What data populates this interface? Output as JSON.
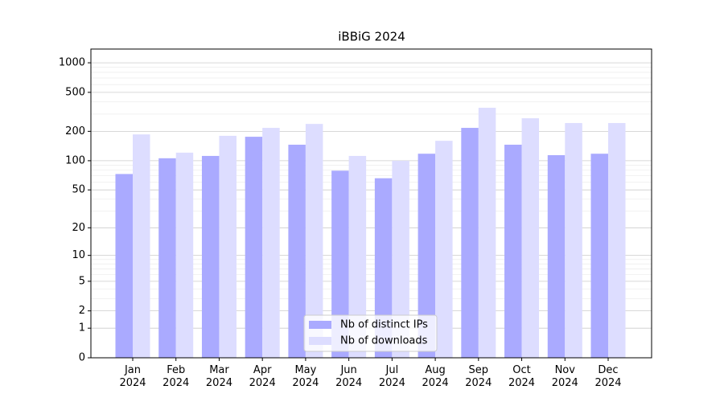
{
  "chart_data": {
    "type": "bar",
    "title": "iBBiG 2024",
    "categories": [
      "Jan\n2024",
      "Feb\n2024",
      "Mar\n2024",
      "Apr\n2024",
      "May\n2024",
      "Jun\n2024",
      "Jul\n2024",
      "Aug\n2024",
      "Sep\n2024",
      "Oct\n2024",
      "Nov\n2024",
      "Dec\n2024"
    ],
    "series": [
      {
        "name": "Nb of distinct IPs",
        "color": "#aaaaff",
        "values": [
          73,
          106,
          112,
          176,
          146,
          79,
          66,
          118,
          217,
          146,
          114,
          118
        ]
      },
      {
        "name": "Nb of downloads",
        "color": "#ddddff",
        "values": [
          186,
          121,
          180,
          217,
          238,
          112,
          100,
          160,
          348,
          272,
          243,
          243
        ]
      }
    ],
    "yscale": "log1p",
    "ylim": [
      0,
      1380
    ],
    "yticks": [
      0,
      1,
      2,
      5,
      10,
      20,
      50,
      100,
      200,
      500,
      1000
    ],
    "minor_yticks": [
      3,
      4,
      6,
      7,
      8,
      9,
      30,
      40,
      60,
      70,
      80,
      90,
      300,
      400,
      600,
      700,
      800,
      900
    ],
    "grid": true,
    "legend": "lower center"
  }
}
